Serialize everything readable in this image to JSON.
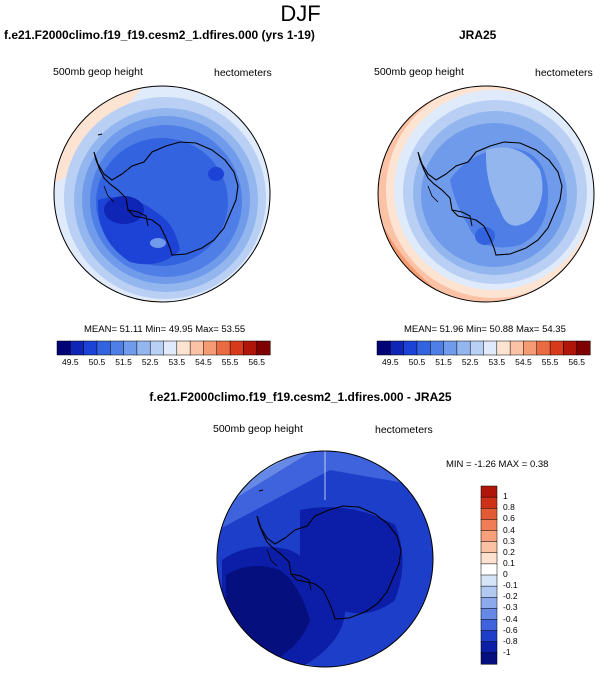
{
  "figure_title": "DJF",
  "chart_data": [
    {
      "type": "heatmap",
      "projection": "south-polar-stereographic",
      "title": "f.e21.F2000climo.f19_f19.cesm2_1.dfires.000 (yrs 1-19)",
      "left_label": "500mb geop height",
      "right_label": "hectometers",
      "stats": {
        "mean": "51.11",
        "min": "49.95",
        "max": "53.55"
      },
      "stats_text": "MEAN=  51.11  Min=  49.95  Max=  53.55",
      "colorbar": {
        "orientation": "horizontal",
        "levels": [
          "49.5",
          "50",
          "50.5",
          "51",
          "51.5",
          "52",
          "52.5",
          "53",
          "53.5",
          "54",
          "54.5",
          "55",
          "55.5",
          "56",
          "56.5"
        ],
        "labels": [
          "49.5",
          "50.5",
          "51.5",
          "52.5",
          "53.5",
          "54.5",
          "55.5",
          "56.5"
        ],
        "colors": [
          "#020275",
          "#0e25b5",
          "#1d42d6",
          "#3463e0",
          "#4f7fe6",
          "#6f9bea",
          "#93b6ef",
          "#b9d0f4",
          "#dfeafa",
          "#fde3d2",
          "#fbc2a5",
          "#f59b73",
          "#ea6a44",
          "#d63a1b",
          "#b0150a",
          "#7e0300"
        ]
      }
    },
    {
      "type": "heatmap",
      "projection": "south-polar-stereographic",
      "title": "JRA25",
      "left_label": "500mb geop height",
      "right_label": "hectometers",
      "stats": {
        "mean": "51.96",
        "min": "50.88",
        "max": "54.35"
      },
      "stats_text": "MEAN=  51.96  Min=  50.88  Max=  54.35",
      "colorbar": {
        "orientation": "horizontal",
        "levels": [
          "49.5",
          "50",
          "50.5",
          "51",
          "51.5",
          "52",
          "52.5",
          "53",
          "53.5",
          "54",
          "54.5",
          "55",
          "55.5",
          "56",
          "56.5"
        ],
        "labels": [
          "49.5",
          "50.5",
          "51.5",
          "52.5",
          "53.5",
          "54.5",
          "55.5",
          "56.5"
        ],
        "colors": [
          "#020275",
          "#0e25b5",
          "#1d42d6",
          "#3463e0",
          "#4f7fe6",
          "#6f9bea",
          "#93b6ef",
          "#b9d0f4",
          "#dfeafa",
          "#fde3d2",
          "#fbc2a5",
          "#f59b73",
          "#ea6a44",
          "#d63a1b",
          "#b0150a",
          "#7e0300"
        ]
      }
    },
    {
      "type": "heatmap",
      "projection": "south-polar-stereographic",
      "title": "f.e21.F2000climo.f19_f19.cesm2_1.dfires.000 - JRA25",
      "left_label": "500mb geop height",
      "right_label": "hectometers",
      "stats": {
        "min": "-1.26",
        "max": "0.38"
      },
      "stats_text": "MIN =  -1.26 MAX =   0.38",
      "colorbar": {
        "orientation": "vertical",
        "levels": [
          "1",
          "0.8",
          "0.6",
          "0.4",
          "0.3",
          "0.2",
          "0.1",
          "0",
          "-0.1",
          "-0.2",
          "-0.3",
          "-0.4",
          "-0.6",
          "-0.8",
          "-1"
        ],
        "labels": [
          "1",
          "0.8",
          "0.6",
          "0.4",
          "0.3",
          "0.2",
          "0.1",
          "0",
          "-0.1",
          "-0.2",
          "-0.3",
          "-0.4",
          "-0.6",
          "-0.8",
          "-1"
        ],
        "colors": [
          "#b0150a",
          "#cf3118",
          "#e35b34",
          "#f07d55",
          "#f8a07c",
          "#fbc1a3",
          "#fee0cf",
          "#ffffff",
          "#d6e4f7",
          "#b1c8f1",
          "#8ba9eb",
          "#6689e6",
          "#3f63dc",
          "#1d3ec9",
          "#0c1ea7",
          "#050f7d"
        ]
      }
    }
  ]
}
